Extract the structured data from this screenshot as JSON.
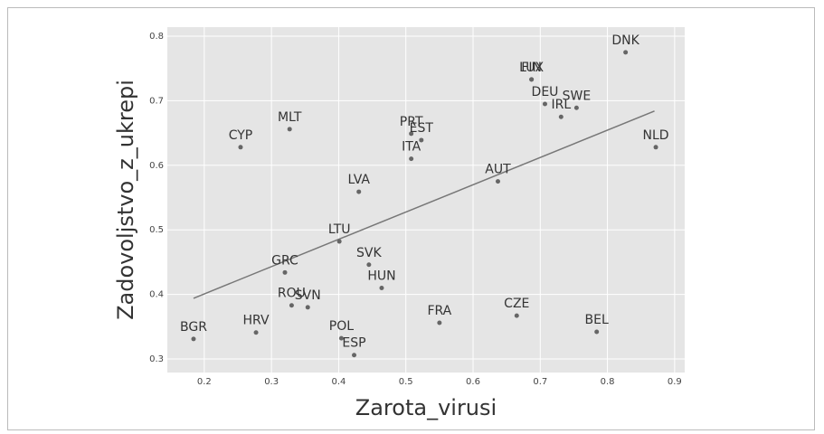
{
  "chart_data": {
    "type": "scatter",
    "x_label": "Zarota_virusi",
    "y_label": "Zadovoljstvo_z_ukrepi",
    "labels": [
      "DNK",
      "LUX",
      "FIN",
      "DEU",
      "SWE",
      "IRL",
      "NLD",
      "CYP",
      "MLT",
      "PRT",
      "EST",
      "ITA",
      "AUT",
      "LVA",
      "LTU",
      "SVK",
      "GRC",
      "HUN",
      "ROU",
      "SVN",
      "FRA",
      "CZE",
      "BEL",
      "BGR",
      "HRV",
      "POL",
      "ESP"
    ],
    "x": [
      0.827,
      0.687,
      0.687,
      0.707,
      0.754,
      0.731,
      0.872,
      0.254,
      0.327,
      0.508,
      0.523,
      0.508,
      0.637,
      0.43,
      0.401,
      0.445,
      0.32,
      0.464,
      0.33,
      0.354,
      0.55,
      0.665,
      0.784,
      0.184,
      0.277,
      0.404,
      0.423
    ],
    "values": [
      0.775,
      0.733,
      0.733,
      0.695,
      0.689,
      0.675,
      0.628,
      0.628,
      0.656,
      0.649,
      0.639,
      0.61,
      0.575,
      0.559,
      0.482,
      0.446,
      0.434,
      0.41,
      0.383,
      0.38,
      0.356,
      0.367,
      0.342,
      0.331,
      0.341,
      0.332,
      0.306
    ],
    "color": "#666666",
    "trendline": {
      "x": [
        0.184,
        0.87
      ],
      "values": [
        0.394,
        0.684
      ],
      "color": "#777777"
    },
    "xlim": [
      0.145,
      0.915
    ],
    "ylim": [
      0.279,
      0.814
    ],
    "xticks": [
      0.2,
      0.3,
      0.4,
      0.5,
      0.6,
      0.7,
      0.8,
      0.9
    ],
    "yticks": [
      0.3,
      0.4,
      0.5,
      0.6,
      0.7,
      0.8
    ],
    "grid": true
  }
}
